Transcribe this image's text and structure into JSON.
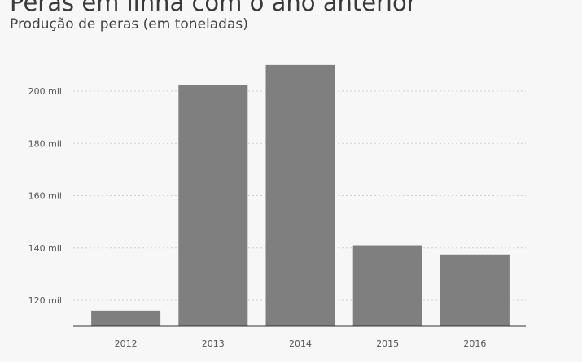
{
  "header": {
    "title": "Peras em linha com o ano anterior",
    "subtitle": "Produção de peras (em toneladas)"
  },
  "chart_data": {
    "type": "bar",
    "categories": [
      "2012",
      "2013",
      "2014",
      "2015",
      "2016"
    ],
    "values": [
      116000,
      202500,
      210000,
      141000,
      137500
    ],
    "ylim": [
      111000,
      214000
    ],
    "yticks": [
      120000,
      140000,
      160000,
      180000,
      200000
    ],
    "ytick_labels": [
      "120 mil",
      "140 mil",
      "160 mil",
      "180 mil",
      "200 mil"
    ],
    "xlabel": "",
    "ylabel": "",
    "grid": true,
    "bar_color": "#7f7f7f"
  }
}
